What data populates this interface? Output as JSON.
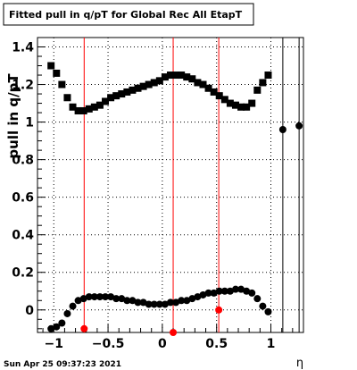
{
  "title_box": "Fitted pull in q/pT for Global Rec All EtapT",
  "timestamp": "Sun Apr 25 09:37:23 2021",
  "chart_data": {
    "type": "scatter",
    "title": "Fitted pull in q/pT for Global Rec All EtapT",
    "xlabel": "η",
    "ylabel": "pull in q/pT",
    "xlim": [
      -1.15,
      1.3
    ],
    "ylim": [
      -0.12,
      1.45
    ],
    "grid": true,
    "x_ticks": [
      -1,
      -0.5,
      0,
      0.5,
      1
    ],
    "x_tick_labels": [
      "−1",
      "−0.5",
      "0",
      "0.5",
      "1"
    ],
    "y_ticks": [
      0,
      0.2,
      0.4,
      0.6,
      0.8,
      1,
      1.2,
      1.4
    ],
    "y_tick_labels": [
      "0",
      "0.2",
      "0.4",
      "0.6",
      "0.8",
      "1",
      "1.2",
      "1.4"
    ],
    "vertical_lines": [
      {
        "x": -0.72,
        "color": "#ff0000"
      },
      {
        "x": 0.1,
        "color": "#ff0000"
      },
      {
        "x": 0.52,
        "color": "#ff0000"
      },
      {
        "x": 1.11,
        "color": "#000000"
      },
      {
        "x": 1.26,
        "color": "#000000"
      }
    ],
    "series": [
      {
        "marker": "square",
        "color": "#000000",
        "x": [
          -1.025,
          -0.975,
          -0.925,
          -0.875,
          -0.825,
          -0.775,
          -0.725,
          -0.675,
          -0.625,
          -0.575,
          -0.525,
          -0.475,
          -0.425,
          -0.375,
          -0.325,
          -0.275,
          -0.225,
          -0.175,
          -0.125,
          -0.075,
          -0.025,
          0.025,
          0.075,
          0.125,
          0.175,
          0.225,
          0.275,
          0.325,
          0.375,
          0.425,
          0.475,
          0.525,
          0.575,
          0.625,
          0.675,
          0.725,
          0.775,
          0.825,
          0.875,
          0.925,
          0.975
        ],
        "y": [
          1.3,
          1.26,
          1.2,
          1.13,
          1.08,
          1.06,
          1.06,
          1.07,
          1.08,
          1.09,
          1.11,
          1.13,
          1.14,
          1.15,
          1.16,
          1.17,
          1.18,
          1.19,
          1.2,
          1.21,
          1.22,
          1.24,
          1.25,
          1.25,
          1.25,
          1.24,
          1.23,
          1.21,
          1.2,
          1.18,
          1.16,
          1.14,
          1.12,
          1.1,
          1.09,
          1.08,
          1.08,
          1.1,
          1.17,
          1.21,
          1.25
        ]
      },
      {
        "marker": "circle",
        "color": "#000000",
        "x": [
          -1.025,
          -0.975,
          -0.925,
          -0.875,
          -0.825,
          -0.775,
          -0.725,
          -0.675,
          -0.625,
          -0.575,
          -0.525,
          -0.475,
          -0.425,
          -0.375,
          -0.325,
          -0.275,
          -0.225,
          -0.175,
          -0.125,
          -0.075,
          -0.025,
          0.025,
          0.075,
          0.125,
          0.175,
          0.225,
          0.275,
          0.325,
          0.375,
          0.425,
          0.475,
          0.525,
          0.575,
          0.625,
          0.675,
          0.725,
          0.775,
          0.825,
          0.875,
          0.925,
          0.975
        ],
        "y": [
          -0.1,
          -0.09,
          -0.07,
          -0.02,
          0.02,
          0.05,
          0.06,
          0.07,
          0.07,
          0.07,
          0.07,
          0.07,
          0.06,
          0.06,
          0.05,
          0.05,
          0.04,
          0.04,
          0.03,
          0.03,
          0.03,
          0.03,
          0.04,
          0.04,
          0.05,
          0.05,
          0.06,
          0.07,
          0.08,
          0.09,
          0.09,
          0.1,
          0.1,
          0.1,
          0.11,
          0.11,
          0.1,
          0.09,
          0.06,
          0.02,
          -0.01
        ]
      },
      {
        "marker": "circle",
        "color": "#000000",
        "x": [
          1.11,
          1.26
        ],
        "y": [
          0.96,
          0.98
        ]
      },
      {
        "marker": "circle",
        "color": "#ff0000",
        "x": [
          -0.72,
          0.1,
          0.52
        ],
        "y": [
          -0.1,
          -0.12,
          0.0
        ]
      }
    ]
  }
}
